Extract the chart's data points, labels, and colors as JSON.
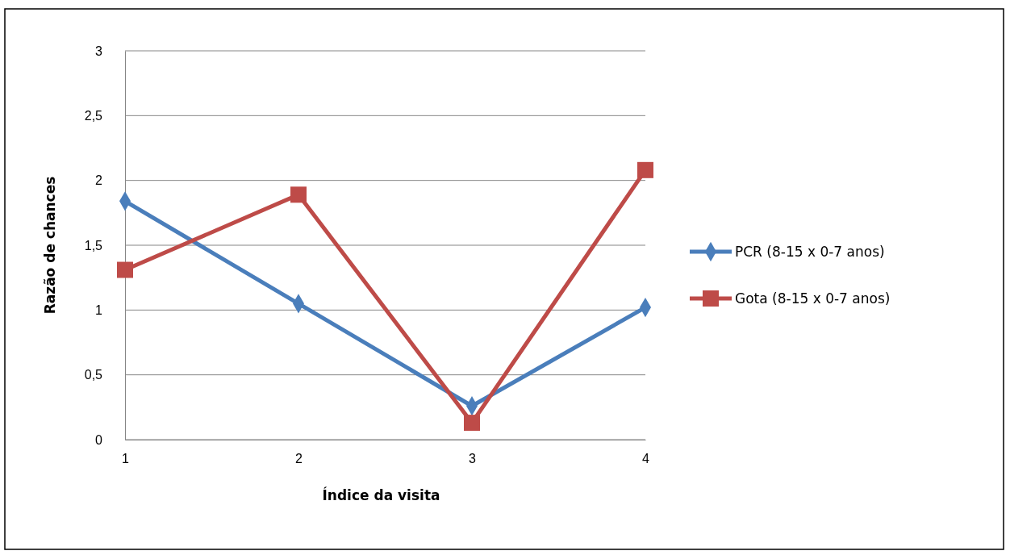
{
  "chart_data": {
    "type": "line",
    "xlabel": "Índice da visita",
    "ylabel": "Razão de chances",
    "categories": [
      "1",
      "2",
      "3",
      "4"
    ],
    "series": [
      {
        "name": "PCR (8-15 x 0-7 anos)",
        "color": "#4a7ebb",
        "marker": "diamond",
        "values": [
          1.84,
          1.05,
          0.26,
          1.02
        ]
      },
      {
        "name": "Gota (8-15 x 0-7 anos)",
        "color": "#be4b48",
        "marker": "square",
        "values": [
          1.31,
          1.89,
          0.13,
          2.08
        ]
      }
    ],
    "ylim": [
      0,
      3
    ],
    "yticks": [
      0,
      {
        "value": 0.5,
        "label": "0,5"
      },
      1,
      {
        "value": 1.5,
        "label": "1,5"
      },
      2,
      {
        "value": 2.5,
        "label": "2,5"
      },
      3
    ],
    "grid": "y",
    "legend": "right",
    "line_style": "solid"
  }
}
